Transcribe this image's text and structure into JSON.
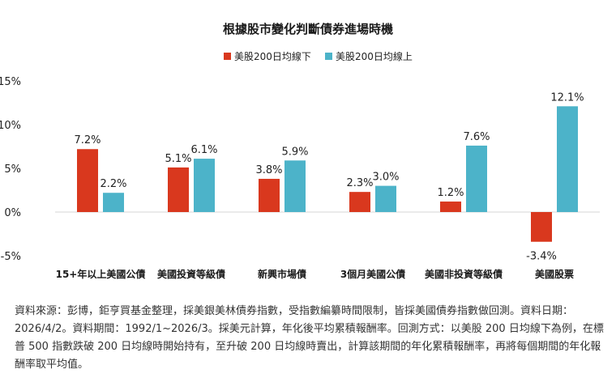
{
  "chart_data": {
    "type": "bar",
    "title": "根據股市變化判斷債券進場時機",
    "categories": [
      "15+年以上美國公債",
      "美國投資等級債",
      "新興市場債",
      "3個月美國公債",
      "美國非投資等級債",
      "美國股票"
    ],
    "series": [
      {
        "name": "美股200日均線下",
        "color": "#d9381e",
        "values": [
          7.2,
          5.1,
          3.8,
          2.3,
          1.2,
          -3.4
        ]
      },
      {
        "name": "美股200日均線上",
        "color": "#4cb3c9",
        "values": [
          2.2,
          6.1,
          5.9,
          3.0,
          7.6,
          12.1
        ]
      }
    ],
    "ylim": [
      -5,
      15
    ],
    "yticks": [
      -5,
      0,
      5,
      10,
      15
    ],
    "ytick_suffix": "%",
    "label_suffix": "%",
    "grid": false,
    "legend": "top-center"
  },
  "footnote": "資料來源：彭博，鉅亨買基金整理，採美銀美林債券指數，受指數編纂時間限制，皆採美國債券指數做回測。資料日期：2026/4/2。資料期間：1992/1~2026/3。採美元計算，年化後平均累積報酬率。回測方式：以美股 200 日均線下為例，在標普 500 指數跌破 200 日均線時開始持有，至升破 200 日均線時賣出，計算該期間的年化累積報酬率，再將每個期間的年化報酬率取平均值。"
}
